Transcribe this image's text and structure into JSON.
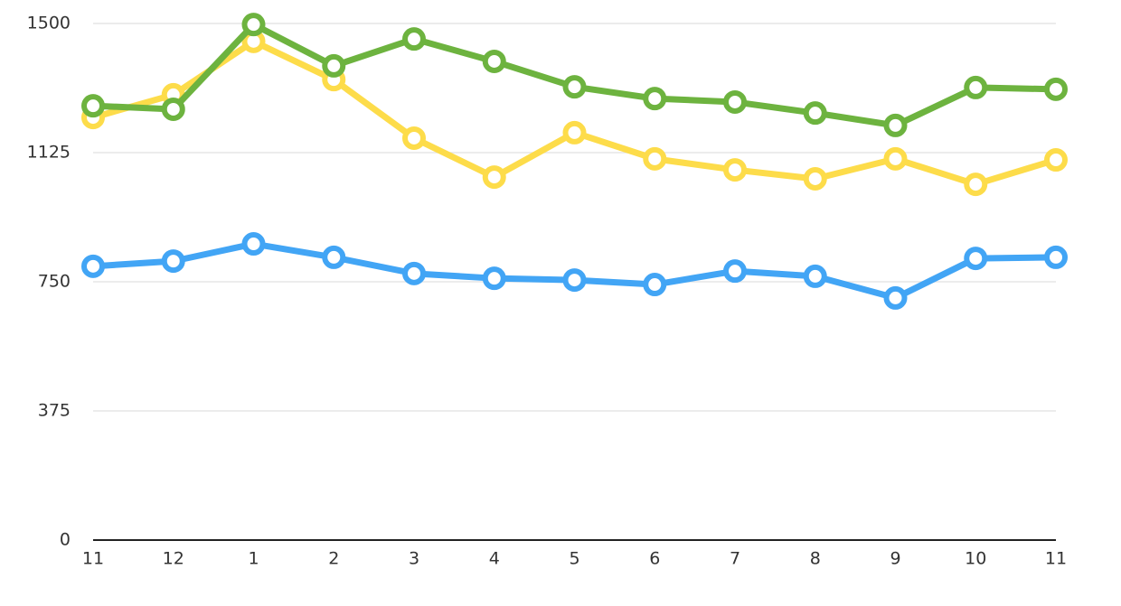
{
  "chart_data": {
    "type": "line",
    "categories": [
      "11",
      "12",
      "1",
      "2",
      "3",
      "4",
      "5",
      "6",
      "7",
      "8",
      "9",
      "10",
      "11"
    ],
    "series": [
      {
        "color": "#fddc4a",
        "values": [
          1227,
          1293,
          1448,
          1337,
          1167,
          1054,
          1183,
          1107,
          1075,
          1049,
          1107,
          1033,
          1104
        ]
      },
      {
        "color": "#6db33f",
        "values": [
          1261,
          1251,
          1497,
          1377,
          1455,
          1390,
          1316,
          1282,
          1272,
          1240,
          1204,
          1314,
          1309
        ]
      },
      {
        "color": "#42a5f5",
        "values": [
          795,
          810,
          860,
          821,
          774,
          760,
          755,
          742,
          781,
          766,
          703,
          818,
          821
        ]
      }
    ],
    "ylim": [
      0,
      1500
    ],
    "yticks": [
      0,
      375,
      750,
      1125,
      1500
    ],
    "grid": true
  }
}
